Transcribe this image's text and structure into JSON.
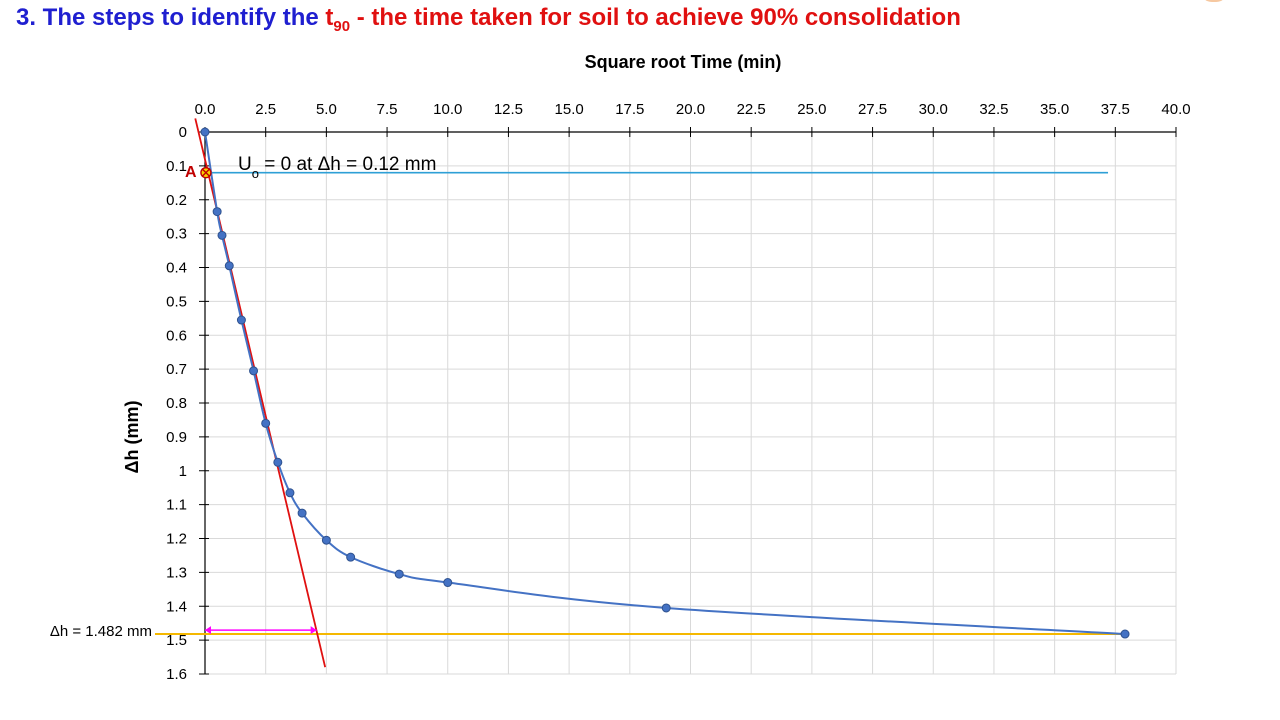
{
  "slide": {
    "title_prefix": "3. The steps to identify the ",
    "title_t": "t",
    "title_sub": "90",
    "title_suffix": " - the time taken for soil to achieve 90% consolidation"
  },
  "colors": {
    "title_blue": "#1f1fd0",
    "title_red": "#e01010",
    "series": "#4472c4",
    "tangent_line": "#e01010",
    "u0_line": "#2e9fd6",
    "h90_line": "#f5b800",
    "arrow": "#ff00ff",
    "grid": "#d9d9d9",
    "point_a_fill": "#f5d000",
    "point_a_label": "#c00000"
  },
  "chart_data": {
    "type": "scatter",
    "title": "Square root Time (min)",
    "xlabel": "Square root Time (min)",
    "ylabel": "Δh (mm)",
    "x_axis_position": "top",
    "y_axis_inverted": true,
    "grid": true,
    "xlim": [
      0,
      40
    ],
    "ylim": [
      0,
      1.6
    ],
    "x_ticks": [
      "0.0",
      "2.5",
      "5.0",
      "7.5",
      "10.0",
      "12.5",
      "15.0",
      "17.5",
      "20.0",
      "22.5",
      "25.0",
      "27.5",
      "30.0",
      "32.5",
      "35.0",
      "37.5",
      "40.0"
    ],
    "y_ticks": [
      "0",
      "0.1",
      "0.2",
      "0.3",
      "0.4",
      "0.5",
      "0.6",
      "0.7",
      "0.8",
      "0.9",
      "1",
      "1.1",
      "1.2",
      "1.3",
      "1.4",
      "1.5",
      "1.6"
    ],
    "series": [
      {
        "x": [
          0,
          0.5,
          0.7,
          1.0,
          1.5,
          2.0,
          2.5,
          3.0,
          3.5,
          4.0,
          5.0,
          6.0,
          8.0,
          10.0,
          19.0,
          37.9
        ],
        "y": [
          0,
          0.235,
          0.305,
          0.395,
          0.555,
          0.705,
          0.86,
          0.975,
          1.065,
          1.125,
          1.205,
          1.255,
          1.305,
          1.33,
          1.405,
          1.482
        ]
      }
    ],
    "annotations": {
      "u0_label": "U",
      "u0_sub": "o",
      "u0_text": " = 0 at Δh = 0.12 mm",
      "u0_value": 0.12,
      "u0_line_x_end": 37.2,
      "point_a_label": "A",
      "point_a": [
        0.12,
        0.12
      ],
      "h90_label": "Δh = 1.482 mm",
      "h90_value": 1.482,
      "tangent_line": [
        [
          -0.4,
          -0.04
        ],
        [
          4.95,
          1.58
        ]
      ],
      "arrow": [
        [
          0,
          1.5
        ],
        [
          4.6,
          1.5
        ]
      ]
    }
  }
}
